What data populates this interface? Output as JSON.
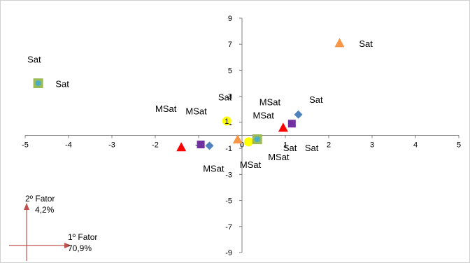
{
  "chart_data": {
    "type": "scatter",
    "title": "",
    "xlim": [
      -5,
      5
    ],
    "ylim": [
      -9,
      9
    ],
    "x_ticks": [
      -5,
      -4,
      -3,
      -2,
      -1,
      0,
      1,
      2,
      3,
      4,
      5
    ],
    "y_ticks": [
      -9,
      -7,
      -5,
      -3,
      -1,
      1,
      3,
      5,
      7,
      9
    ],
    "y_tick_labels": [
      "-9",
      "-7",
      "-5",
      "-3",
      "-1",
      "1",
      "3",
      "5",
      "7",
      "9"
    ],
    "points": [
      {
        "marker": "triangle",
        "color": "#F79646",
        "x": 2.25,
        "y": 7.1
      },
      {
        "marker": "triangle",
        "color": "#F79646",
        "x": -0.1,
        "y": -0.3
      },
      {
        "marker": "triangle",
        "color": "#FF0000",
        "x": -1.4,
        "y": -0.9
      },
      {
        "marker": "triangle",
        "color": "#FF0000",
        "x": 0.95,
        "y": 0.6
      },
      {
        "marker": "square",
        "color": "#7030A0",
        "x": -0.95,
        "y": -0.7
      },
      {
        "marker": "square",
        "color": "#7030A0",
        "x": 1.15,
        "y": 0.9
      },
      {
        "marker": "diamond",
        "color": "#4F81BD",
        "x": -0.75,
        "y": -0.8
      },
      {
        "marker": "diamond",
        "color": "#4F81BD",
        "x": 1.3,
        "y": 1.6
      },
      {
        "marker": "circle",
        "color": "#FFFF00",
        "x": -0.35,
        "y": 1.1
      },
      {
        "marker": "circle",
        "color": "#FFFF00",
        "x": 0.15,
        "y": -0.5
      },
      {
        "marker": "square-circle",
        "color": "#9BBB59",
        "inner_color": "#4BACC6",
        "x": -4.7,
        "y": 4.0
      },
      {
        "marker": "square-circle",
        "color": "#9BBB59",
        "inner_color": "#4BACC6",
        "x": 0.35,
        "y": -0.3
      }
    ],
    "labels": [
      {
        "text": "Sat",
        "x": 2.7,
        "y": 6.8
      },
      {
        "text": "Sat",
        "x": -4.95,
        "y": 5.6
      },
      {
        "text": "Sat",
        "x": -4.3,
        "y": 3.7
      },
      {
        "text": "Sat",
        "x": -0.55,
        "y": 2.7
      },
      {
        "text": "1",
        "x": -0.35,
        "y": 1.1
      },
      {
        "text": "MSat",
        "x": -2.0,
        "y": 1.8
      },
      {
        "text": "MSat",
        "x": -1.3,
        "y": 1.6
      },
      {
        "text": "MSat",
        "x": 0.4,
        "y": 2.3
      },
      {
        "text": "MSat",
        "x": 0.25,
        "y": 1.3
      },
      {
        "text": "Sat",
        "x": 1.55,
        "y": 2.5
      },
      {
        "text": "Sat",
        "x": 0.95,
        "y": -1.2
      },
      {
        "text": "Sat",
        "x": 1.45,
        "y": -1.2
      },
      {
        "text": "MSat",
        "x": 0.6,
        "y": -1.9
      },
      {
        "text": "MSat",
        "x": -0.05,
        "y": -2.5
      },
      {
        "text": "MSat",
        "x": -0.9,
        "y": -2.8
      }
    ]
  },
  "factors": {
    "factor2_title": "2º Fator",
    "factor2_pct": "4,2%",
    "factor1_title": "1º Fator",
    "factor1_pct": "70,9%"
  }
}
